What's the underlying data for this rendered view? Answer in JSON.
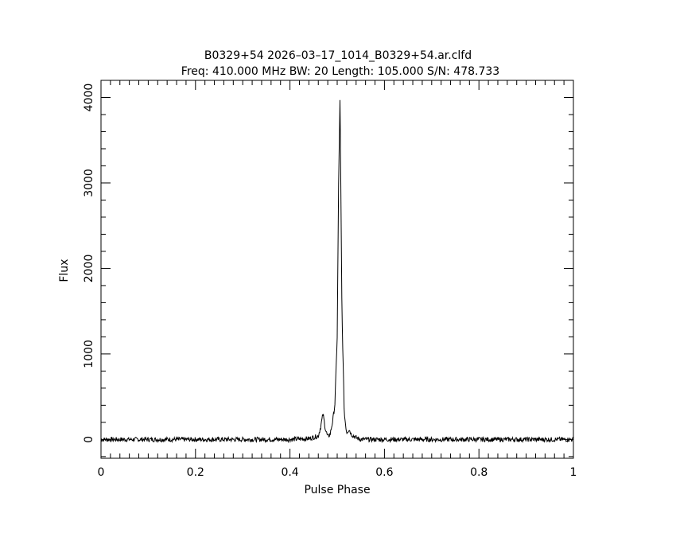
{
  "chart_data": {
    "type": "line",
    "title": "B0329+54 2026–03–17_1014_B0329+54.ar.clfd",
    "subtitle": "Freq: 410.000 MHz BW: 20 Length: 105.000 S/N: 478.733",
    "xlabel": "Pulse Phase",
    "ylabel": "Flux",
    "xlim": [
      0,
      1
    ],
    "ylim": [
      -220,
      4200
    ],
    "x_ticks": [
      0,
      0.2,
      0.4,
      0.6,
      0.8,
      1
    ],
    "x_tick_labels": [
      "0",
      "0.2",
      "0.4",
      "0.6",
      "0.8",
      "1"
    ],
    "y_ticks": [
      0,
      1000,
      2000,
      3000,
      4000
    ],
    "y_tick_labels": [
      "0",
      "1000",
      "2000",
      "3000",
      "4000"
    ],
    "grid": false,
    "series": [
      {
        "x": [
          0.0,
          0.05,
          0.1,
          0.15,
          0.2,
          0.25,
          0.3,
          0.35,
          0.4,
          0.44,
          0.46,
          0.465,
          0.47,
          0.475,
          0.48,
          0.485,
          0.49,
          0.495,
          0.5,
          0.503,
          0.506,
          0.51,
          0.515,
          0.52,
          0.525,
          0.53,
          0.54,
          0.55,
          0.6,
          0.65,
          0.7,
          0.75,
          0.8,
          0.85,
          0.9,
          0.95,
          1.0
        ],
        "values": [
          0,
          0,
          0,
          0,
          0,
          0,
          0,
          0,
          0,
          10,
          40,
          150,
          300,
          120,
          30,
          60,
          200,
          400,
          1200,
          3000,
          4000,
          1500,
          300,
          80,
          120,
          60,
          20,
          0,
          0,
          0,
          0,
          0,
          0,
          0,
          0,
          0,
          0
        ]
      }
    ]
  }
}
